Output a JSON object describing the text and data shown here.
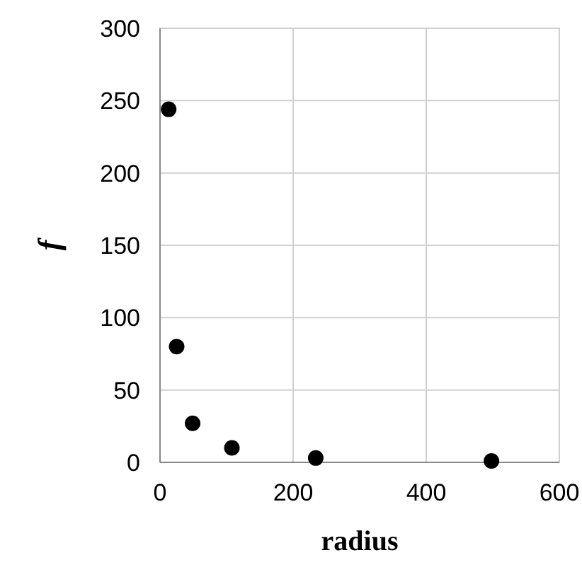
{
  "chart_data": {
    "type": "scatter",
    "xlabel": "radius",
    "ylabel": "f",
    "x": [
      13,
      25,
      49,
      108,
      234,
      498
    ],
    "values": [
      244,
      80,
      27,
      10,
      3,
      1
    ],
    "color": "#000000",
    "marker": "circle",
    "xlim": [
      0,
      600
    ],
    "xticks": [
      0,
      200,
      400,
      600
    ],
    "ylim": [
      0,
      300
    ],
    "yticks": [
      0,
      50,
      100,
      150,
      200,
      250,
      300
    ],
    "grid": true
  }
}
